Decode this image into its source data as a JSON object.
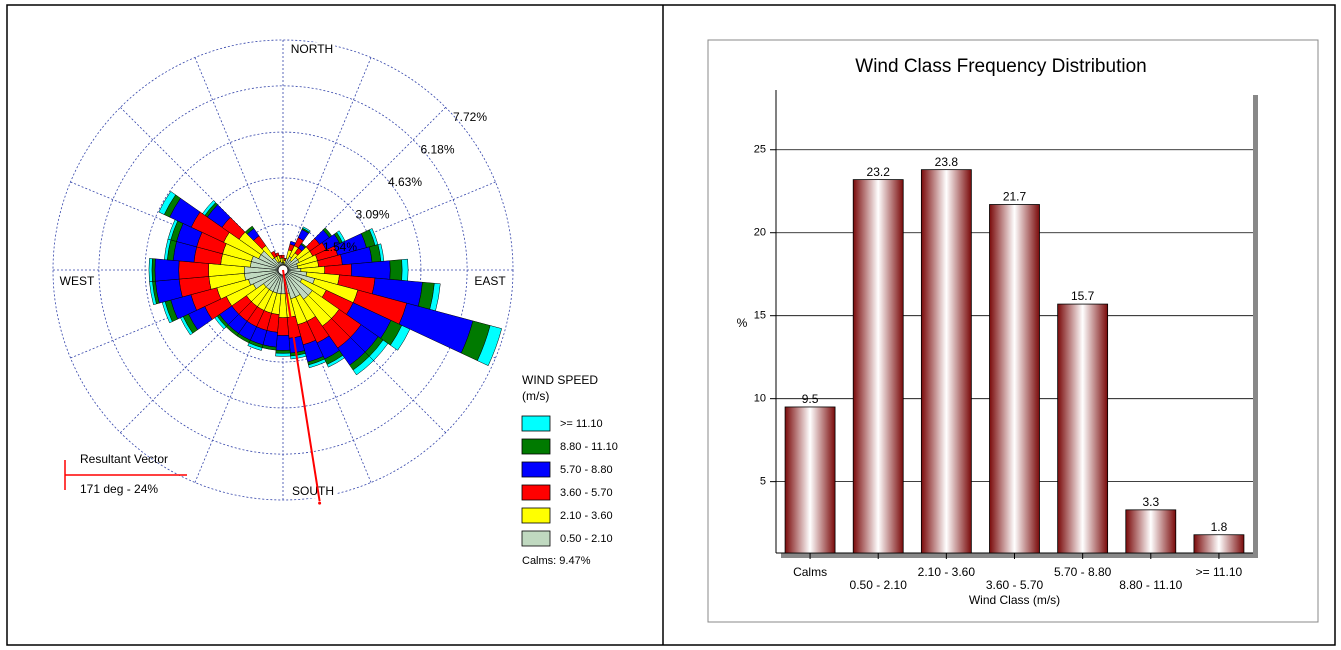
{
  "chart_data": [
    {
      "type": "windrose",
      "directions": [
        "NORTH",
        "EAST",
        "SOUTH",
        "WEST"
      ],
      "rlim": [
        0,
        7.72
      ],
      "rticks": [
        {
          "value": 1.54,
          "label": "1.54%"
        },
        {
          "value": 3.09,
          "label": "3.09%"
        },
        {
          "value": 4.63,
          "label": "4.63%"
        },
        {
          "value": 6.18,
          "label": "6.18%"
        },
        {
          "value": 7.72,
          "label": "7.72%"
        }
      ],
      "legend_title": [
        "WIND SPEED",
        "(m/s)"
      ],
      "series": [
        {
          "name": "0.50 - 2.10",
          "color": "#c0d9c0",
          "values": [
            0.25,
            0.2,
            0.4,
            0.5,
            0.4,
            0.6,
            0.6,
            0.5,
            0.5,
            0.6,
            0.8,
            1.1,
            0.7,
            1.2,
            1.2,
            1.0,
            1.0,
            0.8,
            0.8,
            0.8,
            0.8,
            0.8,
            0.8,
            0.8,
            1.1,
            1.2,
            1.3,
            1.3,
            1.1,
            1.1,
            0.9,
            0.9,
            0.5,
            0.3,
            0.3,
            0.25
          ]
        },
        {
          "name": "2.10 - 3.60",
          "color": "#ffff00",
          "values": [
            0.15,
            0.12,
            0.3,
            0.4,
            0.3,
            0.5,
            0.5,
            0.7,
            0.7,
            0.8,
            1.1,
            1.5,
            0.9,
            1.1,
            1.1,
            0.9,
            0.9,
            0.8,
            0.8,
            0.7,
            0.7,
            0.7,
            0.7,
            0.7,
            1.0,
            1.1,
            1.2,
            1.2,
            1.0,
            1.0,
            1.3,
            0.9,
            0.5,
            0.2,
            0.2,
            0.15
          ]
        },
        {
          "name": "3.60 - 5.70",
          "color": "#ff0000",
          "values": [
            0.1,
            0.08,
            0.2,
            0.3,
            0.2,
            0.4,
            0.5,
            0.7,
            0.8,
            0.9,
            1.2,
            1.7,
            1.0,
            0.9,
            0.9,
            0.8,
            0.7,
            0.7,
            0.6,
            0.6,
            0.6,
            0.6,
            0.6,
            0.6,
            0.8,
            0.9,
            1.0,
            1.0,
            0.9,
            0.9,
            1.2,
            0.7,
            0.4,
            0.2,
            0.1,
            0.1
          ]
        },
        {
          "name": "5.70 - 8.80",
          "color": "#0000ff",
          "values": [
            0,
            0,
            0.1,
            0.3,
            0.15,
            0.4,
            0.5,
            1.0,
            1.0,
            1.3,
            1.6,
            2.3,
            1.4,
            0.7,
            0.7,
            0.6,
            0.6,
            0.5,
            0.5,
            0.5,
            0.5,
            0.5,
            0.5,
            0.5,
            0.6,
            0.7,
            0.8,
            0.8,
            0.7,
            0.7,
            0.8,
            0.6,
            0.3,
            0,
            0,
            0
          ]
        },
        {
          "name": "8.80 - 11.10",
          "color": "#007a00",
          "values": [
            0,
            0,
            0,
            0.05,
            0.05,
            0.1,
            0.1,
            0.3,
            0.3,
            0.4,
            0.4,
            0.6,
            0.4,
            0.2,
            0.2,
            0.2,
            0.1,
            0.1,
            0.1,
            0.1,
            0.1,
            0.1,
            0.1,
            0.1,
            0.2,
            0.2,
            0.1,
            0.1,
            0.2,
            0.2,
            0.2,
            0.1,
            0.1,
            0,
            0,
            0
          ]
        },
        {
          "name": ">= 11.10",
          "color": "#00ffff",
          "values": [
            0,
            0,
            0,
            0.05,
            0,
            0,
            0.1,
            0.1,
            0.1,
            0.2,
            0.2,
            0.4,
            0.3,
            0.2,
            0.2,
            0.1,
            0.1,
            0.1,
            0.1,
            0,
            0.1,
            0,
            0,
            0.1,
            0.1,
            0.1,
            0.1,
            0.1,
            0.1,
            0.1,
            0.2,
            0.1,
            0,
            0,
            0,
            0
          ]
        }
      ],
      "calms_label": "Calms: 9.47%",
      "resultant_vector": {
        "title": "Resultant Vector",
        "label": "171 deg - 24%",
        "direction": 171
      }
    },
    {
      "type": "bar",
      "title": "Wind Class Frequency Distribution",
      "categories": [
        "Calms",
        "0.50 - 2.10",
        "2.10 - 3.60",
        "3.60 - 5.70",
        "5.70 - 8.80",
        "8.80 - 11.10",
        ">= 11.10"
      ],
      "values": [
        9.5,
        23.2,
        23.8,
        21.7,
        15.7,
        3.3,
        1.8
      ],
      "color": "#7a0a0a",
      "xlabel": "Wind Class (m/s)",
      "ylabel": "%",
      "ylim": [
        0.7,
        28.6
      ],
      "yticks": [
        5,
        10,
        15,
        20,
        25
      ],
      "grid": true
    }
  ]
}
